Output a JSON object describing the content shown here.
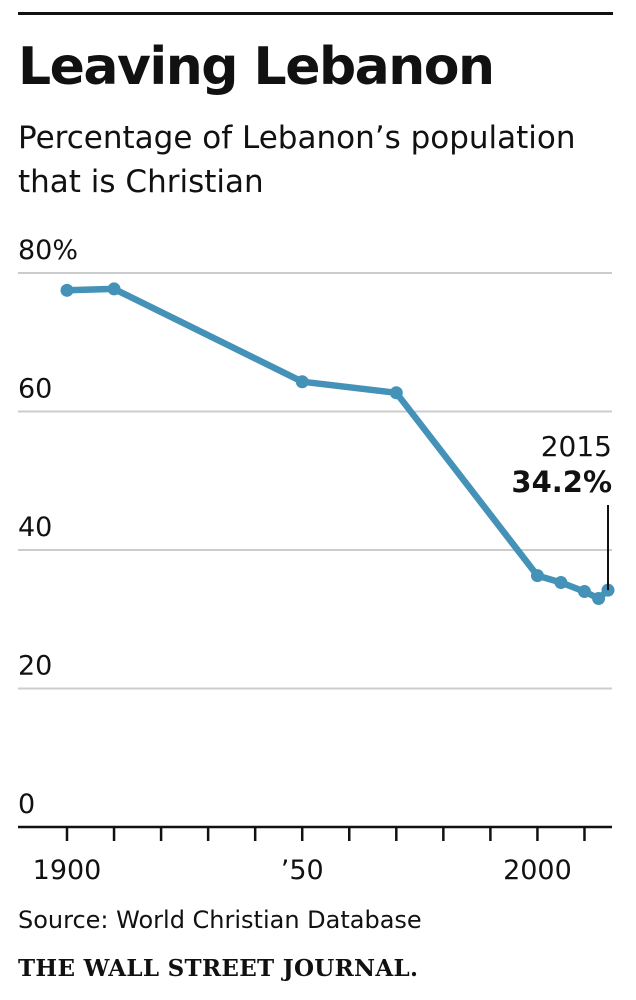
{
  "title": "Leaving Lebanon",
  "subtitle": "Percentage of Lebanon’s population that is Christian",
  "source": "Source: World Christian Database",
  "publisher": "THE WALL STREET JOURNAL.",
  "colors": {
    "line": "#4592b8",
    "grid": "#cccccc",
    "axis": "#111111",
    "text": "#111111"
  },
  "chart_data": {
    "type": "line",
    "title": "Leaving Lebanon",
    "subtitle": "Percentage of Lebanon’s population that is Christian",
    "xlabel": "",
    "ylabel": "",
    "xlim": [
      1900,
      2015
    ],
    "ylim": [
      0,
      80
    ],
    "grid": true,
    "x_ticks": [
      1900,
      1910,
      1920,
      1930,
      1940,
      1950,
      1960,
      1970,
      1980,
      1990,
      2000,
      2010
    ],
    "x_tick_labels": [
      {
        "x": 1900,
        "label": "1900"
      },
      {
        "x": 1950,
        "label": "’50"
      },
      {
        "x": 2000,
        "label": "2000"
      }
    ],
    "y_ticks": [
      {
        "y": 0,
        "label": "0"
      },
      {
        "y": 20,
        "label": "20"
      },
      {
        "y": 40,
        "label": "40"
      },
      {
        "y": 60,
        "label": "60"
      },
      {
        "y": 80,
        "label": "80%"
      }
    ],
    "series": [
      {
        "x": [
          1900,
          1910,
          1950,
          1970,
          2000,
          2005,
          2010,
          2013,
          2015
        ],
        "y": [
          77.5,
          77.7,
          64.3,
          62.7,
          36.3,
          35.3,
          34.0,
          33.0,
          34.2
        ]
      }
    ],
    "annotation": {
      "x": 2015,
      "y": 34.2,
      "year_label": "2015",
      "value_label": "34.2%"
    }
  }
}
